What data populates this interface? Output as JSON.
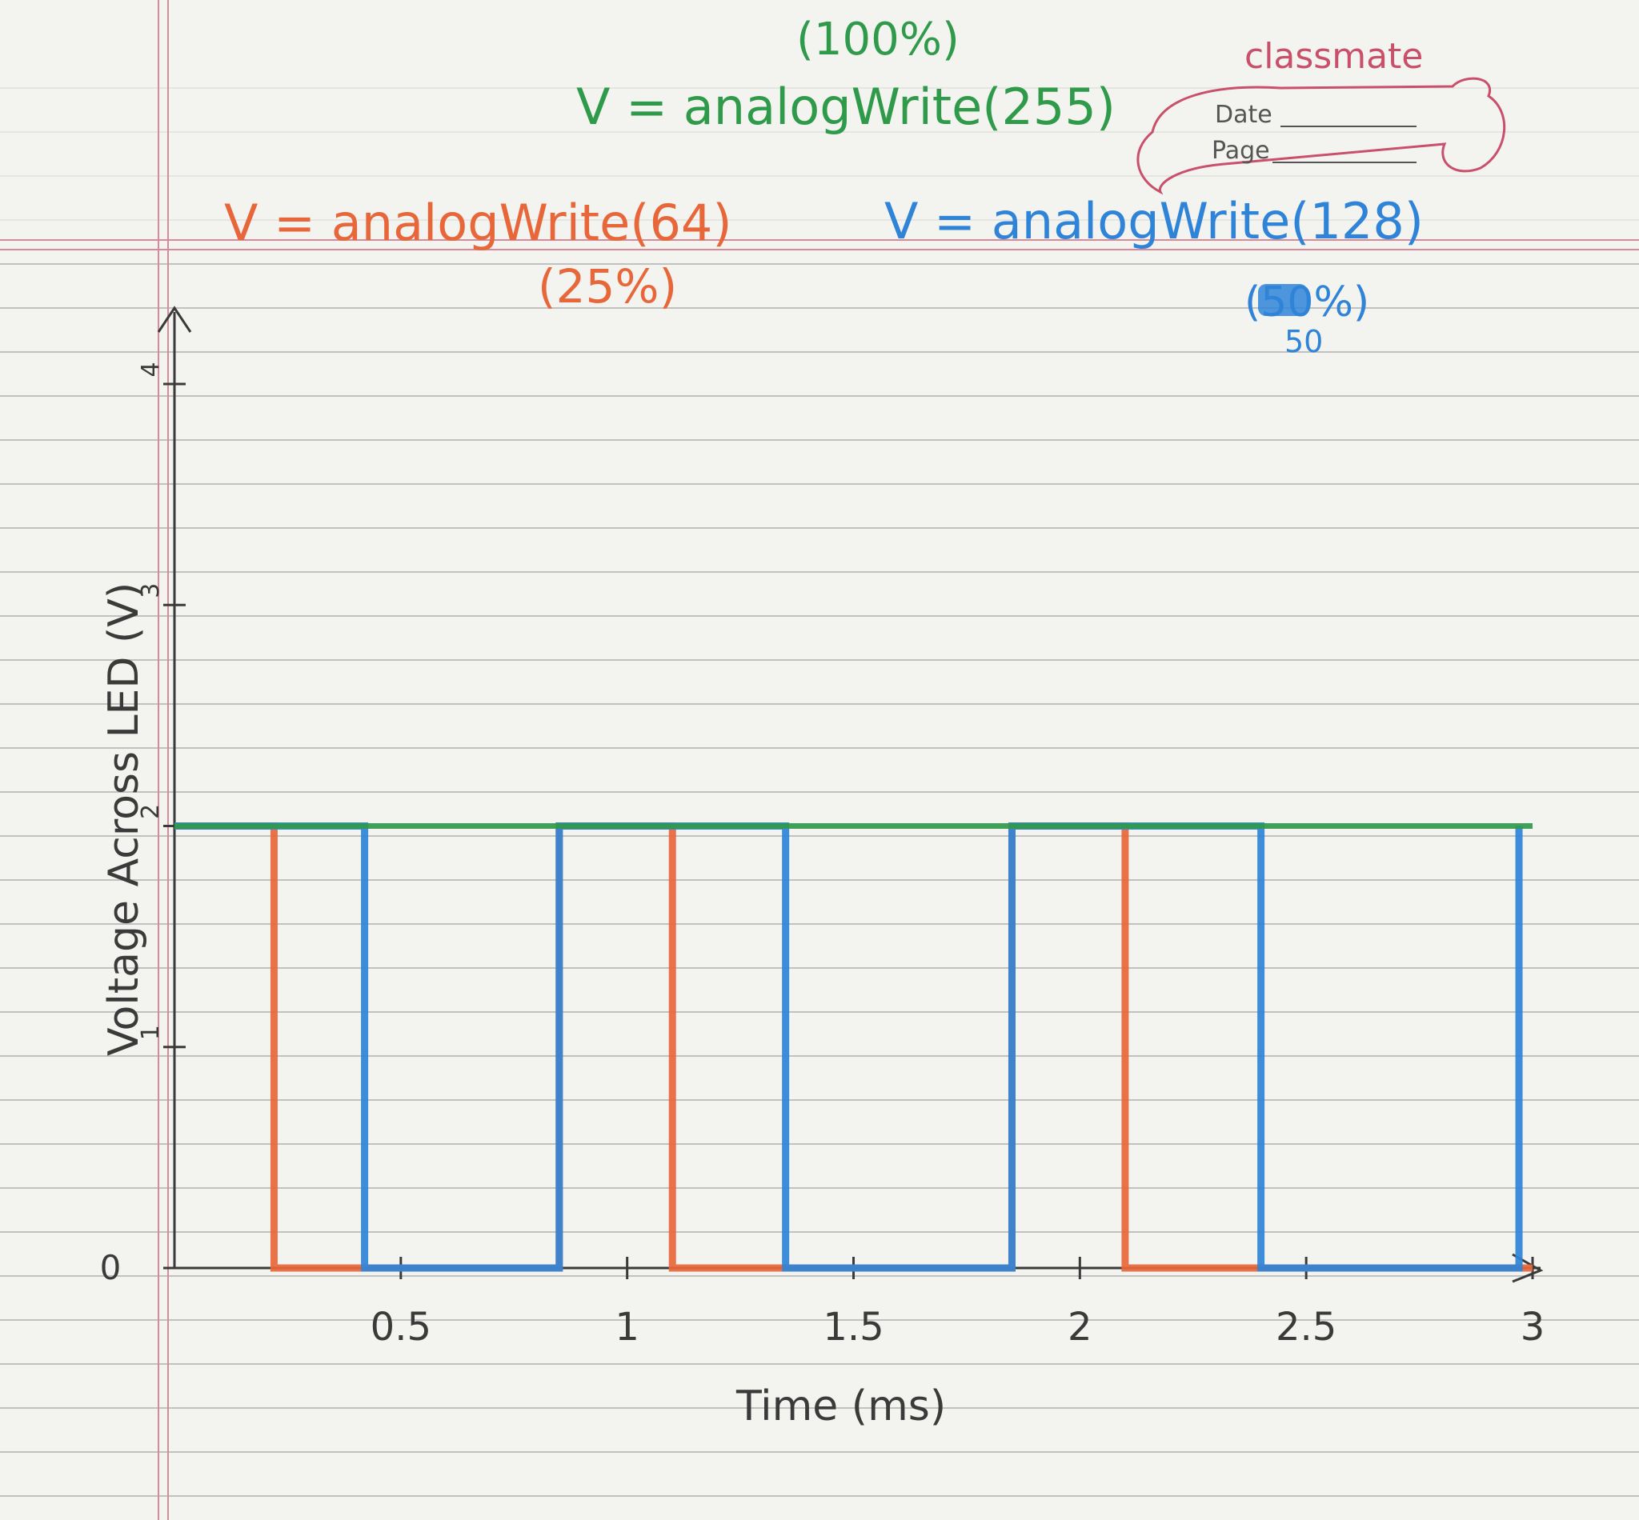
{
  "colors": {
    "paper": "#f3f3ef",
    "rule": "#9a9a9a",
    "margin": "#d98a9a",
    "pen": "#3a3a3a",
    "orange": "#e8673a",
    "blue": "#2f84d8",
    "green": "#2f9a4a",
    "stamp": "#c9506a"
  },
  "stamp": {
    "brand": "classmate",
    "date_label": "Date",
    "page_label": "Page"
  },
  "chart_data": {
    "type": "line",
    "xlabel": "Time (ms)",
    "ylabel": "Voltage Across LED (V)",
    "x_ticks": [
      "0.5",
      "1",
      "1.5",
      "2",
      "2.5",
      "3"
    ],
    "y_ticks": [
      "0",
      "1",
      "2",
      "3",
      "4"
    ],
    "xlim": [
      0,
      3
    ],
    "ylim": [
      0,
      4
    ],
    "series": [
      {
        "name": "V = analogWrite(64)",
        "label_note": "(25%)",
        "color": "orange",
        "x": [
          0,
          0.22,
          0.22,
          0.85,
          0.85,
          1.1,
          1.1,
          1.85,
          1.85,
          2.1,
          2.1,
          3.0
        ],
        "y": [
          2,
          2,
          0,
          0,
          2,
          2,
          0,
          0,
          2,
          2,
          0,
          0
        ]
      },
      {
        "name": "V = analogWrite(128)",
        "label_note": "(50%)",
        "label_strike": "50",
        "label_under": "50",
        "color": "blue",
        "x": [
          0,
          0.42,
          0.42,
          0.85,
          0.85,
          1.35,
          1.35,
          1.85,
          1.85,
          2.4,
          2.4,
          2.97,
          2.97
        ],
        "y": [
          2,
          2,
          0,
          0,
          2,
          2,
          0,
          0,
          2,
          2,
          0,
          0,
          2
        ]
      },
      {
        "name": "V = analogWrite(255)",
        "label_note": "(100%)",
        "color": "green",
        "x": [
          0,
          3.0
        ],
        "y": [
          2,
          2
        ]
      }
    ],
    "grid": false
  }
}
